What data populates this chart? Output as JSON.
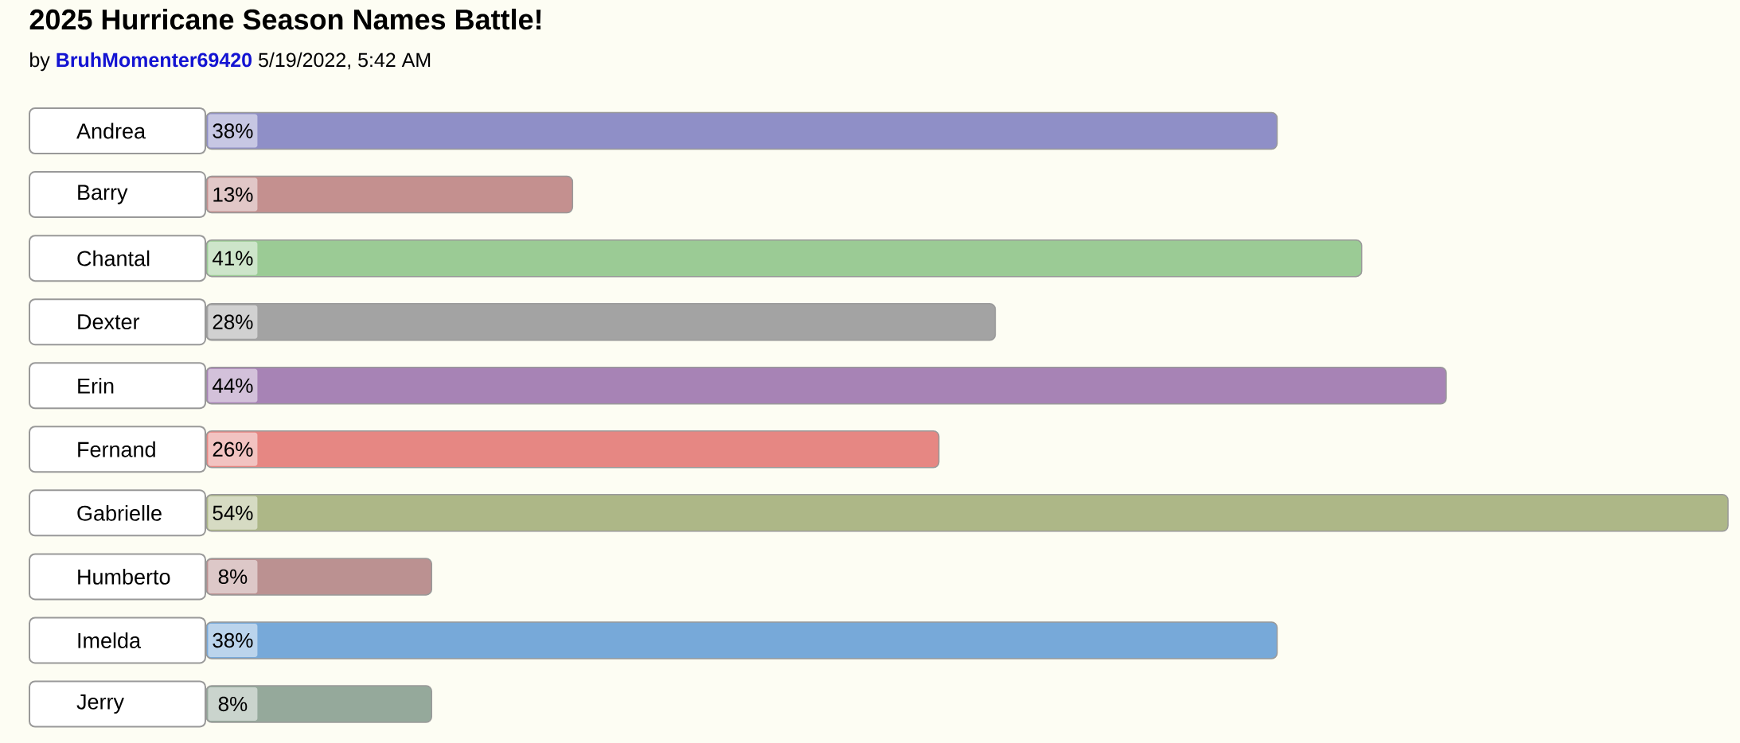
{
  "chart_data": {
    "type": "bar",
    "orientation": "horizontal",
    "title": "2025 Hurricane Season Names Battle!",
    "subtitle": "by **BruhMomenter69420**   5/19/2022, 5:42 AM",
    "categories": [
      "Andrea",
      "Barry",
      "Chantal",
      "Dexter",
      "Erin",
      "Fernand",
      "Gabrielle",
      "Humberto",
      "Imelda",
      "Jerry"
    ],
    "values": [
      38,
      13,
      41,
      28,
      44,
      26,
      54,
      8,
      38,
      8
    ],
    "colors": [
      "#8f8fc7",
      "#c4908f",
      "#9bcb95",
      "#a3a3a3",
      "#a783b5",
      "#e68783",
      "#adb787",
      "#bb9191",
      "#77a9d9",
      "#95a99b"
    ],
    "value_labels": [
      "38%",
      "13%",
      "41%",
      "28%",
      "44%",
      "26%",
      "54%",
      "8%",
      "38%",
      "8%"
    ]
  }
}
